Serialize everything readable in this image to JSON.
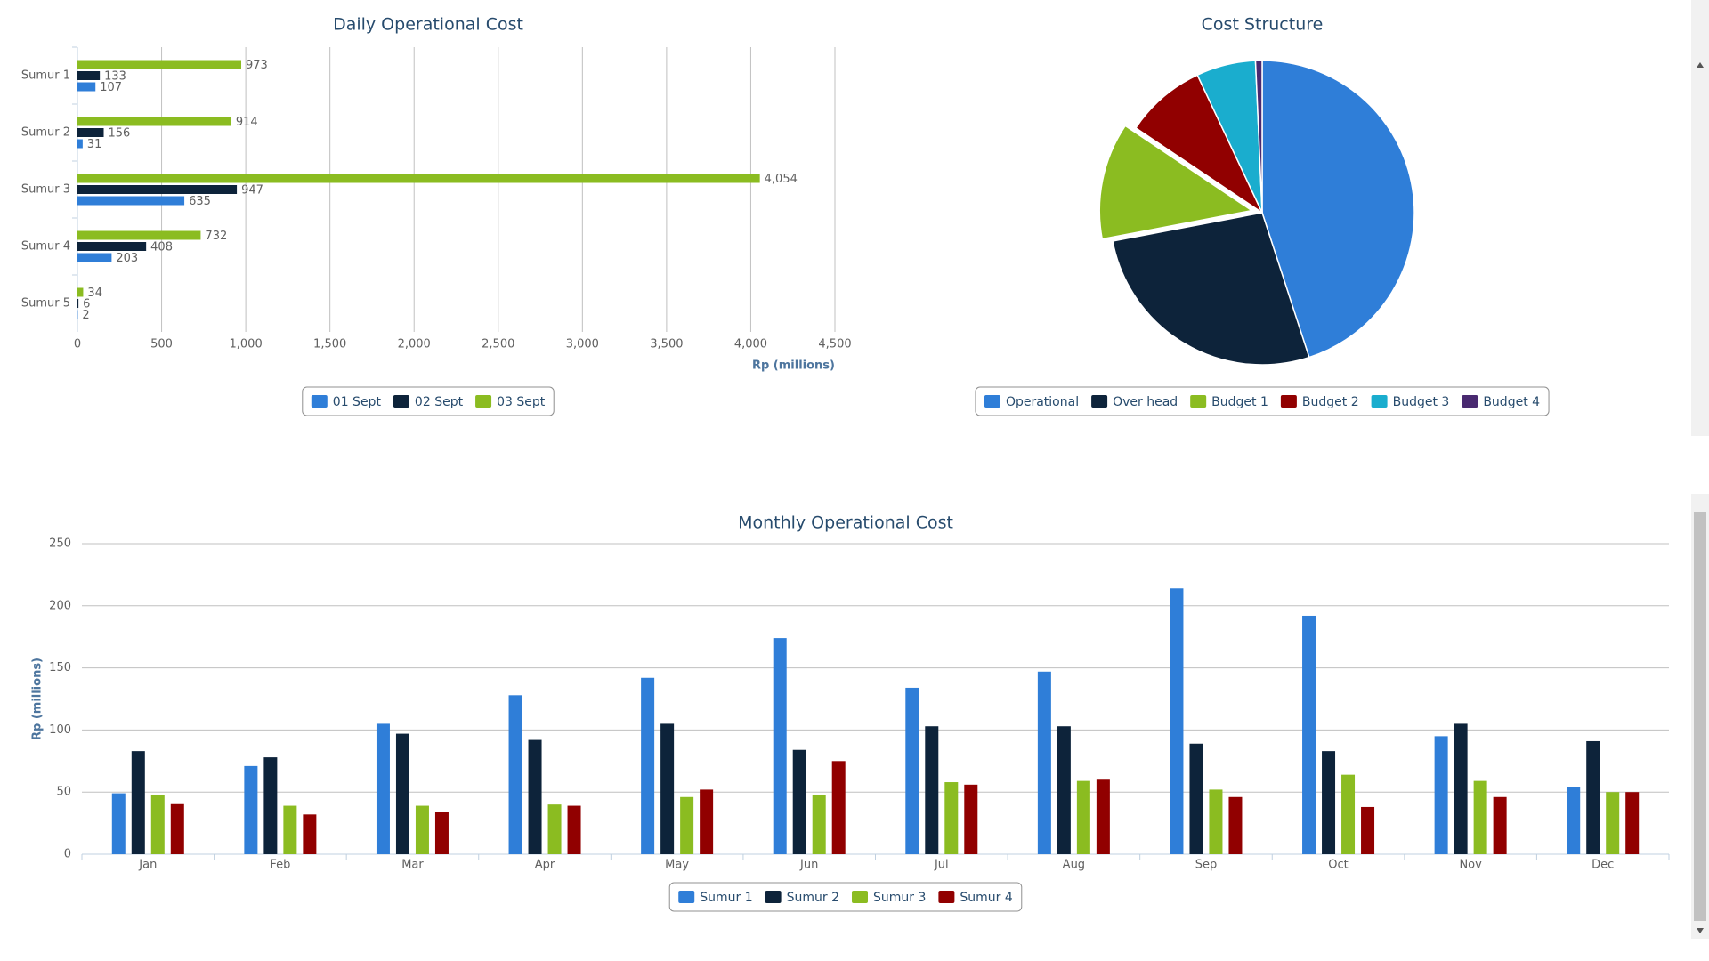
{
  "chart_data": [
    {
      "type": "bar",
      "orientation": "horizontal",
      "title": "Daily Operational Cost",
      "categories": [
        "Sumur 1",
        "Sumur 2",
        "Sumur 3",
        "Sumur 4",
        "Sumur 5"
      ],
      "series": [
        {
          "name": "01 Sept",
          "color": "#2f7ed8",
          "values": [
            107,
            31,
            635,
            203,
            2
          ]
        },
        {
          "name": "02 Sept",
          "color": "#0d233a",
          "values": [
            133,
            156,
            947,
            408,
            6
          ]
        },
        {
          "name": "03 Sept",
          "color": "#8bbc21",
          "values": [
            973,
            914,
            4054,
            732,
            34
          ],
          "value_labels": [
            "973",
            "914",
            "4,054",
            "732",
            "34"
          ]
        }
      ],
      "xlabel": "Rp (millions)",
      "xlim": [
        0,
        4500
      ],
      "xticks": [
        0,
        500,
        {
          "value": 1000,
          "label": "1,000"
        },
        {
          "value": 1500,
          "label": "1,500"
        },
        {
          "value": 2000,
          "label": "2,000"
        },
        {
          "value": 2500,
          "label": "2,500"
        },
        {
          "value": 3000,
          "label": "3,000"
        },
        {
          "value": 3500,
          "label": "3,500"
        },
        {
          "value": 4000,
          "label": "4,000"
        },
        {
          "value": 4500,
          "label": "4,500"
        }
      ],
      "grid": true
    },
    {
      "type": "pie",
      "title": "Cost Structure",
      "categories": [
        "Operational",
        "Over head",
        "Budget 1",
        "Budget 2",
        "Budget 3",
        "Budget 4"
      ],
      "values": [
        45,
        27,
        12.4,
        8.6,
        6.3,
        0.7
      ],
      "colors": [
        "#2f7ed8",
        "#0d233a",
        "#8bbc21",
        "#910000",
        "#1aadce",
        "#492970"
      ],
      "sliced": 2
    },
    {
      "type": "bar",
      "orientation": "vertical",
      "title": "Monthly Operational Cost",
      "categories": [
        "Jan",
        "Feb",
        "Mar",
        "Apr",
        "May",
        "Jun",
        "Jul",
        "Aug",
        "Sep",
        "Oct",
        "Nov",
        "Dec"
      ],
      "series": [
        {
          "name": "Sumur 1",
          "color": "#2f7ed8",
          "values": [
            49,
            71,
            105,
            128,
            142,
            174,
            134,
            147,
            214,
            192,
            95,
            54
          ]
        },
        {
          "name": "Sumur 2",
          "color": "#0d233a",
          "values": [
            83,
            78,
            97,
            92,
            105,
            84,
            103,
            103,
            89,
            83,
            105,
            91
          ]
        },
        {
          "name": "Sumur 3",
          "color": "#8bbc21",
          "values": [
            48,
            39,
            39,
            40,
            46,
            48,
            58,
            59,
            52,
            64,
            59,
            50
          ]
        },
        {
          "name": "Sumur 4",
          "color": "#910000",
          "values": [
            41,
            32,
            34,
            39,
            52,
            75,
            56,
            60,
            46,
            38,
            46,
            50
          ]
        }
      ],
      "ylabel": "Rp (millions)",
      "ylim": [
        0,
        250
      ],
      "yticks": [
        0,
        50,
        100,
        150,
        200,
        250
      ],
      "grid": true
    }
  ]
}
